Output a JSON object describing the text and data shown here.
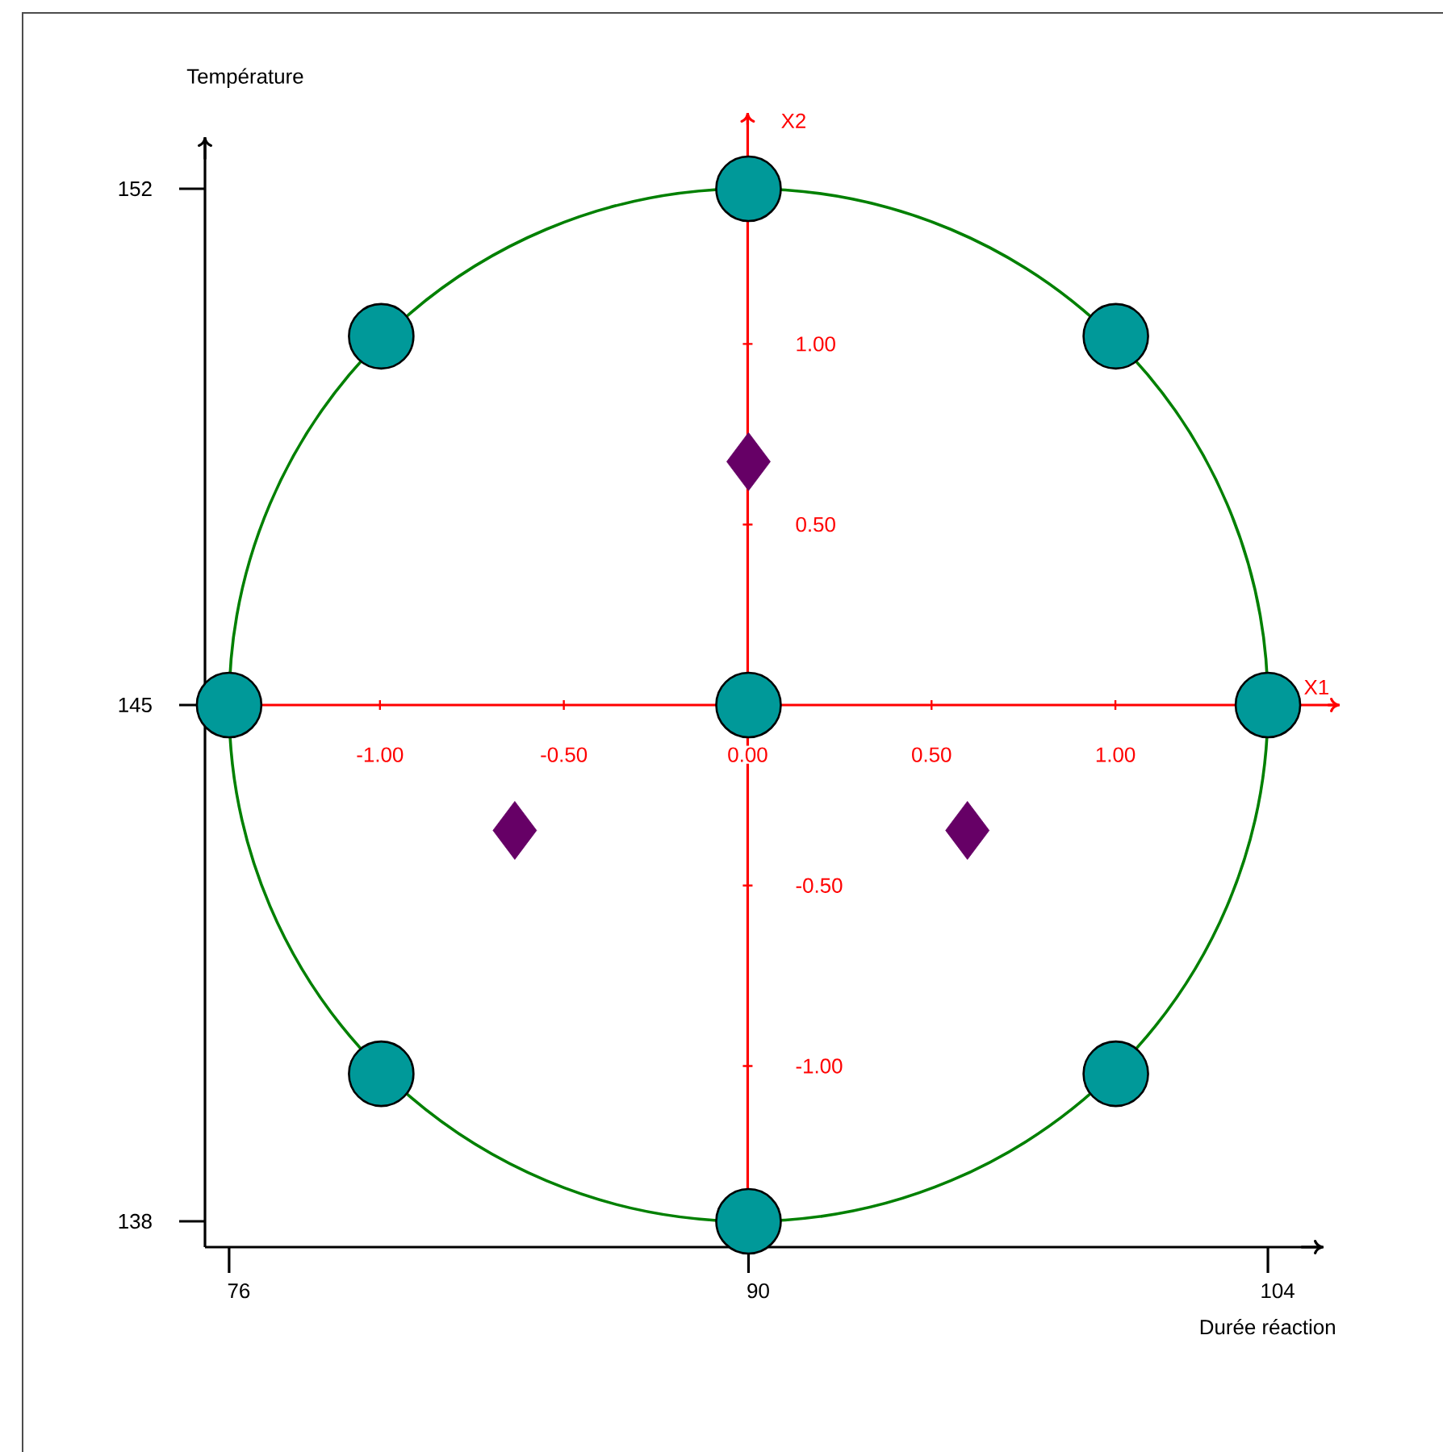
{
  "chart_data": {
    "type": "scatter",
    "xlabel": "Durée réaction",
    "ylabel": "Température",
    "x2label": "X1",
    "y2label": "X2",
    "xlim": [
      75.35,
      105.5
    ],
    "ylim": [
      137.65,
      152.7
    ],
    "xticks": [
      76,
      90,
      104
    ],
    "yticks": [
      138,
      145,
      152
    ],
    "x2lim": [
      -1.41,
      1.61
    ],
    "x2ticks": [
      {
        "value": -1,
        "label": "-1.00"
      },
      {
        "value": -0.5,
        "label": "-0.50"
      },
      {
        "value": 0,
        "label": "0.00"
      },
      {
        "value": 0.5,
        "label": "0.50"
      },
      {
        "value": 1,
        "label": "1.00"
      }
    ],
    "y2lim": [
      -1.43,
      1.64
    ],
    "y2ticks": [
      {
        "value": -1,
        "label": "-1.00"
      },
      {
        "value": -0.5,
        "label": "-0.50"
      },
      {
        "value": 0.5,
        "label": "0.50"
      },
      {
        "value": 1,
        "label": "1.00"
      }
    ],
    "grid": false,
    "series": [
      {
        "color": "#009999",
        "marker": "circle",
        "x": [
          76,
          80.1,
          90,
          99.9,
          104,
          99.9,
          90,
          80.1,
          90
        ],
        "values": [
          145,
          150,
          152,
          150,
          145,
          140,
          138,
          140,
          145
        ]
      },
      {
        "color": "#660066",
        "marker": "diamond",
        "x": [
          83.7,
          95.9,
          90
        ],
        "values": [
          143.3,
          143.3,
          148.3
        ]
      }
    ]
  }
}
